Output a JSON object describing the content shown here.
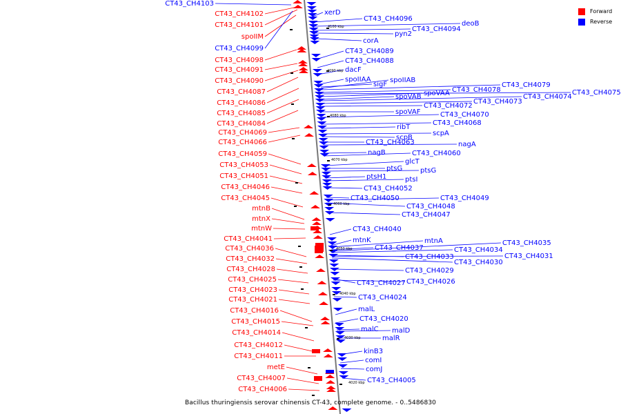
{
  "legend": {
    "items": [
      {
        "label": "Forward",
        "color": "#ff0000"
      },
      {
        "label": "Reverse",
        "color": "#0000ff"
      }
    ]
  },
  "caption": "Bacillus thuringiensis serovar chinensis CT-43, complete genome. - 0..5486830",
  "colors": {
    "forward": "#ff0000",
    "reverse": "#0000ff",
    "axis": "#777777"
  },
  "ruler_ticks": [
    {
      "label": "4100 kbp",
      "position_kbp": 4100
    },
    {
      "label": "4090 kbp",
      "position_kbp": 4090
    },
    {
      "label": "4080 kbp",
      "position_kbp": 4080
    },
    {
      "label": "4070 kbp",
      "position_kbp": 4070
    },
    {
      "label": "4060 kbp",
      "position_kbp": 4060
    },
    {
      "label": "4050 kbp",
      "position_kbp": 4050
    },
    {
      "label": "4040 kbp",
      "position_kbp": 4040
    },
    {
      "label": "4030 kbp",
      "position_kbp": 4030
    },
    {
      "label": "4020 kbp",
      "position_kbp": 4020
    }
  ],
  "forward_genes": [
    "CT43_CH4102",
    "CT43_CH4101",
    "spoIIM",
    "CT43_CH4098",
    "CT43_CH4091",
    "CT43_CH4090",
    "CT43_CH4087",
    "CT43_CH4086",
    "CT43_CH4085",
    "CT43_CH4084",
    "CT43_CH4069",
    "CT43_CH4066",
    "CT43_CH4059",
    "CT43_CH4053",
    "CT43_CH4051",
    "CT43_CH4046",
    "CT43_CH4045",
    "mtnB",
    "mtnX",
    "mtnW",
    "CT43_CH4041",
    "CT43_CH4036",
    "CT43_CH4032",
    "CT43_CH4028",
    "CT43_CH4025",
    "CT43_CH4023",
    "CT43_CH4021",
    "CT43_CH4016",
    "CT43_CH4015",
    "CT43_CH4014",
    "CT43_CH4012",
    "CT43_CH4011",
    "metE",
    "CT43_CH4007",
    "CT43_CH4006"
  ],
  "reverse_genes": [
    "CT43_CH4103",
    "CT43_CH4099",
    "xerD",
    "CT43_CH4096",
    "deoB",
    "CT43_CH4094",
    "pyn2",
    "corA",
    "CT43_CH4089",
    "CT43_CH4088",
    "dacF",
    "spoIIAA",
    "sigF",
    "spoIIAB",
    "CT43_CH4079",
    "CT43_CH4078",
    "CT43_CH4075",
    "spoVAA",
    "spoVAB",
    "CT43_CH4074",
    "CT43_CH4073",
    "CT43_CH4072",
    "spoVAF",
    "CT43_CH4070",
    "CT43_CH4068",
    "ribT",
    "scpA",
    "scpB",
    "CT43_CH4063",
    "nagA",
    "nagB",
    "CT43_CH4060",
    "glcT",
    "ptsG",
    "ptsG",
    "ptsH1",
    "ptsI",
    "CT43_CH4052",
    "CT43_CH4050",
    "CT43_CH4049",
    "CT43_CH4048",
    "CT43_CH4047",
    "CT43_CH4040",
    "mtnK",
    "mtnA",
    "CT43_CH4037",
    "CT43_CH4035",
    "CT43_CH4034",
    "CT43_CH4033",
    "CT43_CH4031",
    "CT43_CH4030",
    "CT43_CH4029",
    "CT43_CH4027",
    "CT43_CH4026",
    "CT43_CH4024",
    "malL",
    "CT43_CH4020",
    "malC",
    "malD",
    "malR",
    "kinB3",
    "comI",
    "comJ",
    "CT43_CH4005"
  ]
}
